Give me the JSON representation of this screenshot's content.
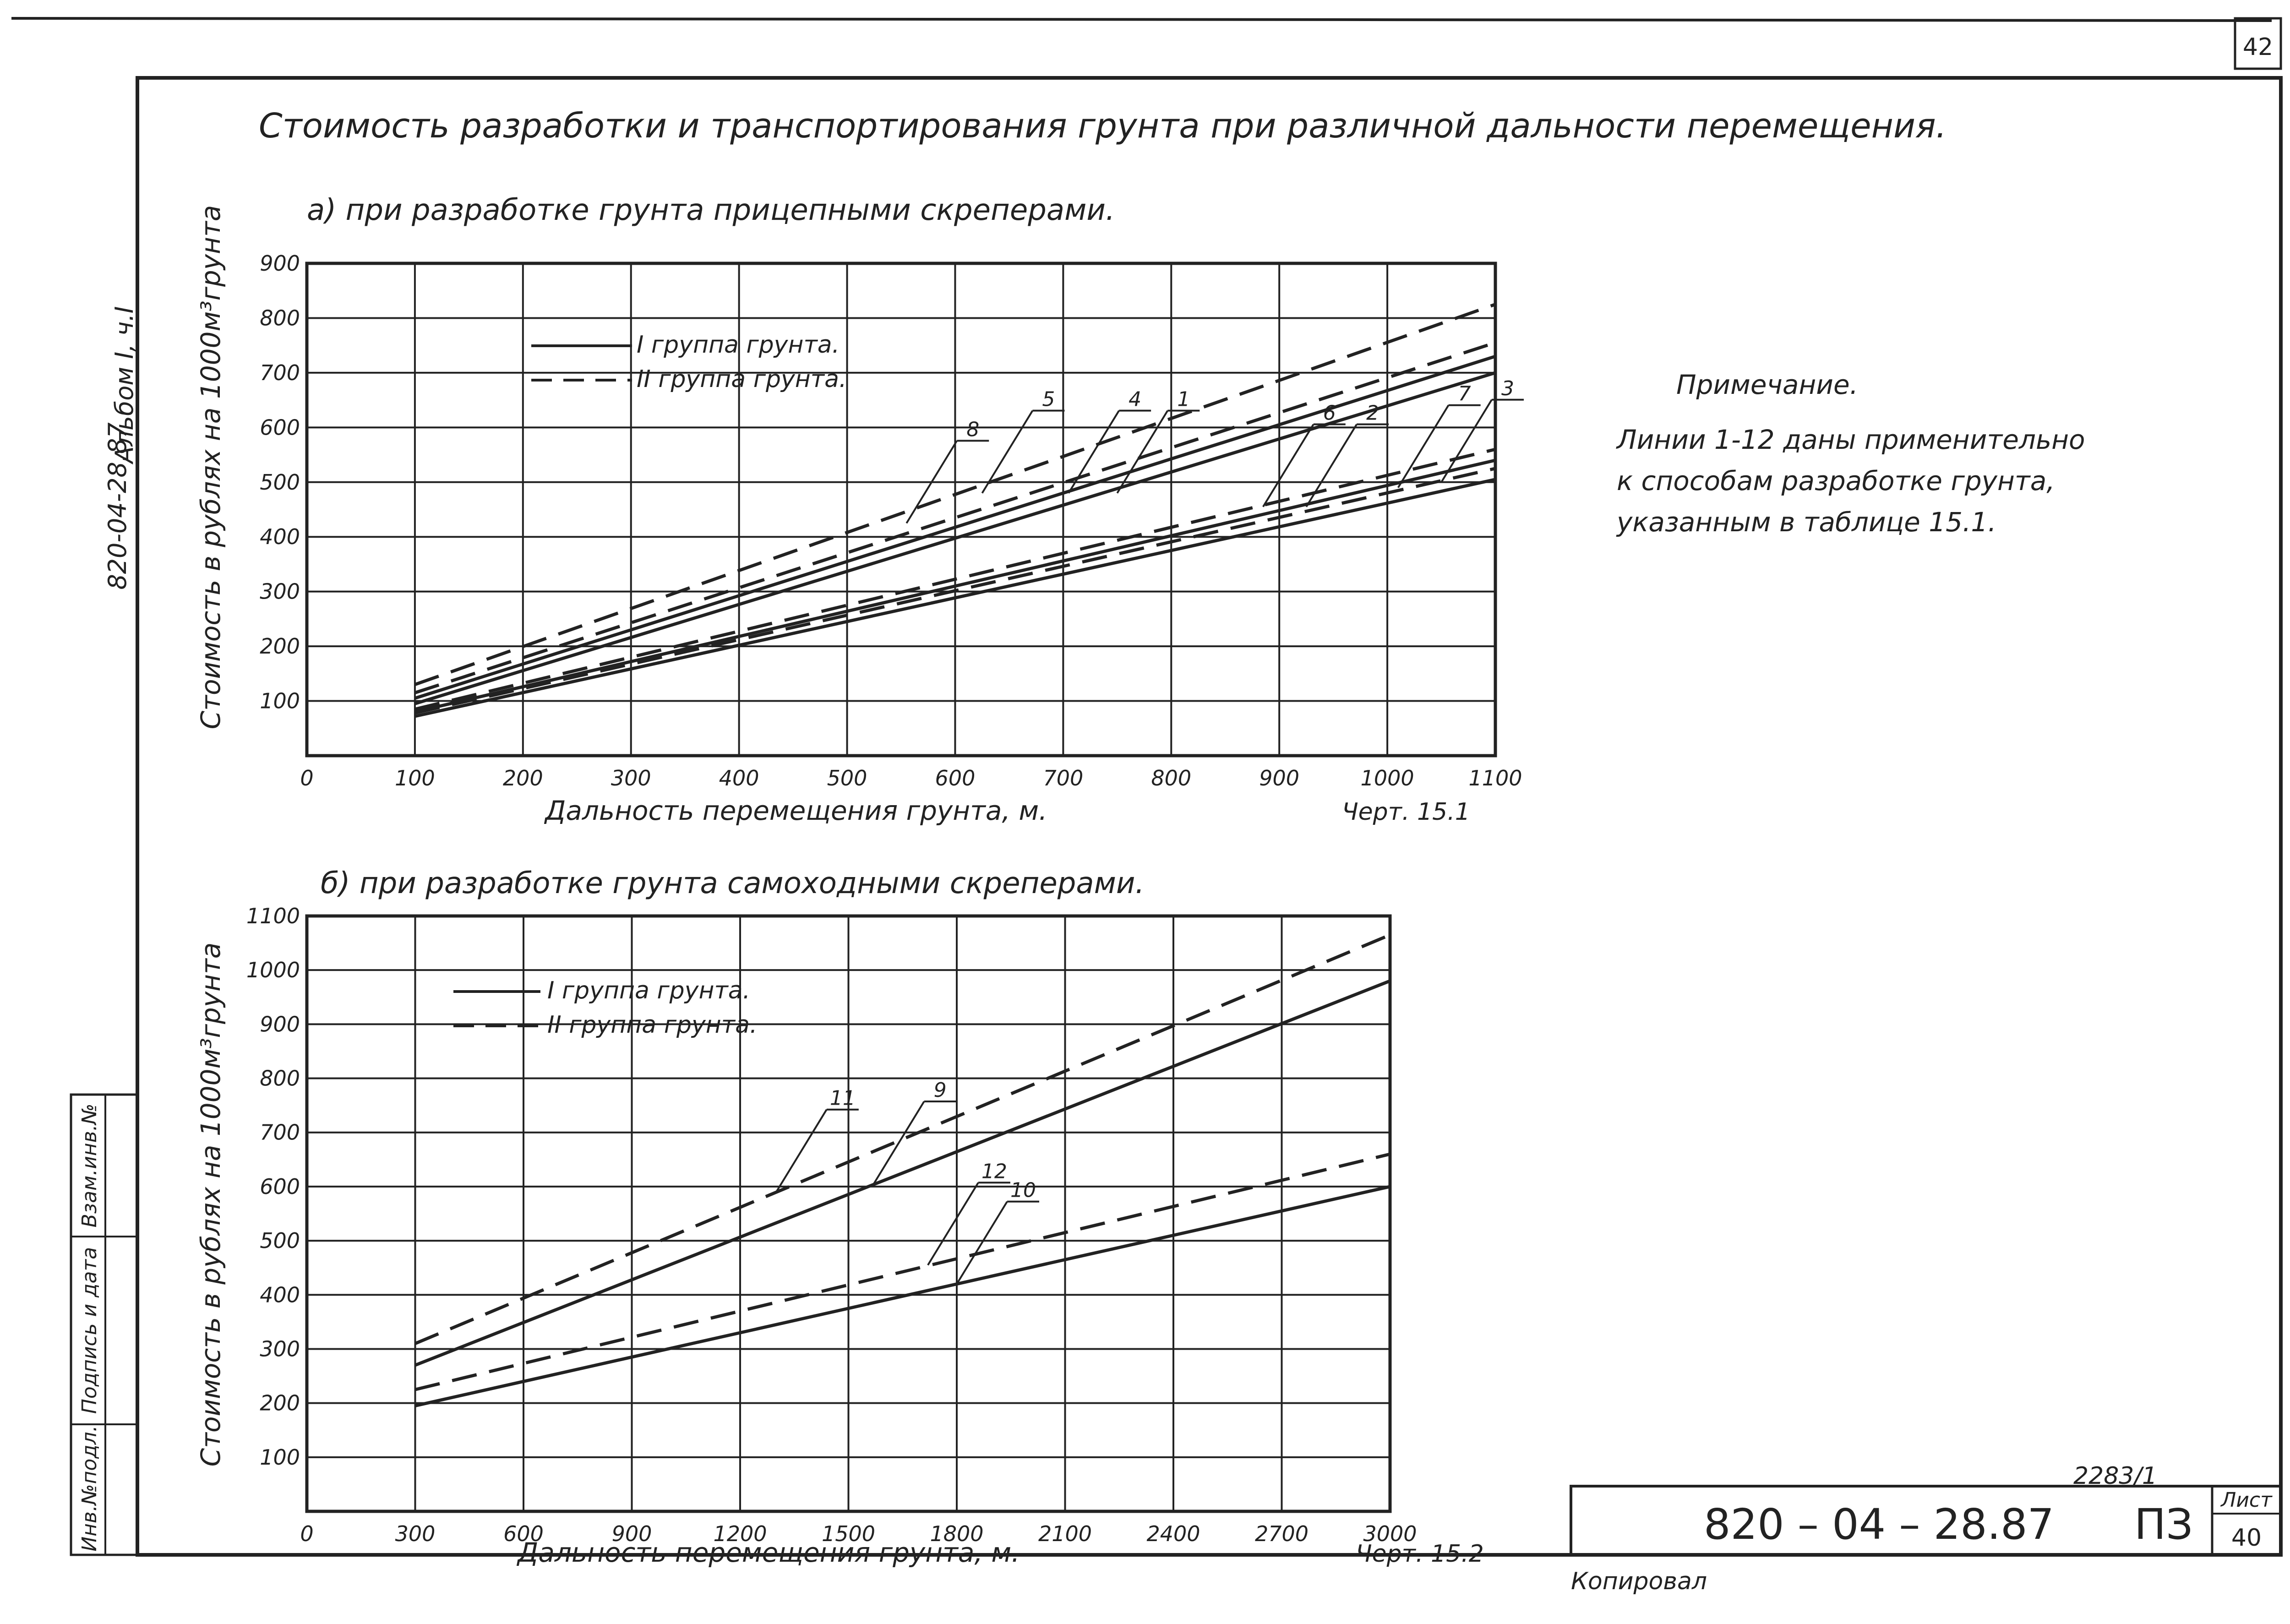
{
  "header": {
    "title": "Стоимость разработки и транспортирования грунта при различной дальности перемещения.",
    "page_number": "42",
    "side_album": "Альбом I, ч.I",
    "side_code": "820-04-28.87"
  },
  "note": {
    "heading": "Примечание.",
    "lines": [
      "Линии 1-12 даны применительно",
      "к способам разработке грунта,",
      "указанным в таблице 15.1."
    ]
  },
  "side_stamp": [
    "Инв.№подл.",
    "Подпись и дата",
    "Взам.инв.№"
  ],
  "title_block": {
    "code": "820 – 04 – 28.87",
    "sheet_label": "Лист",
    "sheet_number": "40",
    "section": "ПЗ",
    "archive_number": "2283/1",
    "copied": "Копировал"
  },
  "colors": {
    "ink": "#222222",
    "background": "#ffffff"
  },
  "chart_data": [
    {
      "type": "line",
      "subtitle": "а) при разработке грунта прицепными скреперами.",
      "xlabel": "Дальность перемещения грунта, м.",
      "ylabel": "Стоимость в рублях на 1000м³грунта",
      "caption": "Черт. 15.1",
      "xlim": [
        0,
        1100
      ],
      "ylim": [
        0,
        900
      ],
      "x_ticks": [
        "0",
        "100",
        "200",
        "300",
        "400",
        "500",
        "600",
        "700",
        "800",
        "900",
        "1000",
        "1100"
      ],
      "y_ticks": [
        "100",
        "200",
        "300",
        "400",
        "500",
        "600",
        "700",
        "800",
        "900"
      ],
      "grid": true,
      "legend": [
        {
          "label": "I группа грунта.",
          "style": "solid"
        },
        {
          "label": "II группа грунта.",
          "style": "dashed"
        }
      ],
      "legend_position": "top-left",
      "series": [
        {
          "name": "1",
          "style": "dashed",
          "x": [
            100,
            1100
          ],
          "y": [
            130,
            825
          ]
        },
        {
          "name": "4",
          "style": "solid",
          "x": [
            100,
            1100
          ],
          "y": [
            105,
            730
          ]
        },
        {
          "name": "5",
          "style": "dashed",
          "x": [
            100,
            1100
          ],
          "y": [
            115,
            755
          ]
        },
        {
          "name": "8",
          "style": "solid",
          "x": [
            100,
            1100
          ],
          "y": [
            95,
            700
          ]
        },
        {
          "name": "6",
          "style": "dashed",
          "x": [
            100,
            1100
          ],
          "y": [
            85,
            560
          ]
        },
        {
          "name": "2",
          "style": "solid",
          "x": [
            100,
            1100
          ],
          "y": [
            80,
            540
          ]
        },
        {
          "name": "7",
          "style": "dashed",
          "x": [
            100,
            1100
          ],
          "y": [
            78,
            525
          ]
        },
        {
          "name": "3",
          "style": "solid",
          "x": [
            100,
            1100
          ],
          "y": [
            72,
            505
          ]
        }
      ],
      "annotations": [
        {
          "label": "8",
          "x": 555,
          "y": 425
        },
        {
          "label": "5",
          "x": 625,
          "y": 480
        },
        {
          "label": "4",
          "x": 705,
          "y": 480
        },
        {
          "label": "1",
          "x": 750,
          "y": 480
        },
        {
          "label": "6",
          "x": 885,
          "y": 455
        },
        {
          "label": "2",
          "x": 925,
          "y": 455
        },
        {
          "label": "7",
          "x": 1010,
          "y": 490
        },
        {
          "label": "3",
          "x": 1050,
          "y": 500
        }
      ]
    },
    {
      "type": "line",
      "subtitle": "б) при разработке грунта самоходными скреперами.",
      "xlabel": "Дальность перемещения грунта, м.",
      "ylabel": "Стоимость в рублях на 1000м³грунта",
      "caption": "Черт. 15.2",
      "xlim": [
        0,
        3000
      ],
      "ylim": [
        0,
        1100
      ],
      "x_ticks": [
        "0",
        "300",
        "600",
        "900",
        "1200",
        "1500",
        "1800",
        "2100",
        "2400",
        "2700",
        "3000"
      ],
      "y_ticks": [
        "100",
        "200",
        "300",
        "400",
        "500",
        "600",
        "700",
        "800",
        "900",
        "1000",
        "1100"
      ],
      "grid": true,
      "legend": [
        {
          "label": "I группа грунта.",
          "style": "solid"
        },
        {
          "label": "II группа грунта.",
          "style": "dashed"
        }
      ],
      "legend_position": "top-left",
      "series": [
        {
          "name": "11",
          "style": "dashed",
          "x": [
            300,
            3000
          ],
          "y": [
            310,
            1065
          ]
        },
        {
          "name": "9",
          "style": "solid",
          "x": [
            300,
            3000
          ],
          "y": [
            270,
            980
          ]
        },
        {
          "name": "12",
          "style": "dashed",
          "x": [
            300,
            3000
          ],
          "y": [
            225,
            660
          ]
        },
        {
          "name": "10",
          "style": "solid",
          "x": [
            300,
            3000
          ],
          "y": [
            195,
            600
          ]
        }
      ],
      "annotations": [
        {
          "label": "11",
          "x": 1300,
          "y": 590
        },
        {
          "label": "9",
          "x": 1570,
          "y": 605
        },
        {
          "label": "12",
          "x": 1720,
          "y": 455
        },
        {
          "label": "10",
          "x": 1800,
          "y": 420
        }
      ]
    }
  ]
}
